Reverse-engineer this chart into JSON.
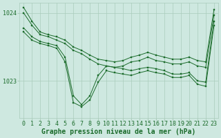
{
  "bg_color": "#cee8e0",
  "plot_bg_color": "#cee8e0",
  "grid_color": "#aaccbb",
  "line_color": "#1a6b2a",
  "marker_color": "#1a6b2a",
  "xlabel": "Graphe pression niveau de la mer (hPa)",
  "xlabel_fontsize": 7.0,
  "tick_fontsize": 6.0,
  "ytick_labels": [
    "1023",
    "1024"
  ],
  "ytick_values": [
    1023.0,
    1024.0
  ],
  "ylim": [
    1022.45,
    1024.15
  ],
  "xlim": [
    -0.5,
    23.5
  ],
  "xtick_values": [
    0,
    1,
    2,
    3,
    4,
    5,
    6,
    7,
    8,
    9,
    10,
    11,
    12,
    13,
    14,
    15,
    16,
    17,
    18,
    19,
    20,
    21,
    22,
    23
  ],
  "series": [
    [
      1024.08,
      1023.88,
      1023.72,
      1023.68,
      1023.65,
      1023.6,
      1023.5,
      1023.45,
      1023.38,
      1023.32,
      1023.3,
      1023.28,
      1023.3,
      1023.35,
      1023.38,
      1023.42,
      1023.38,
      1023.35,
      1023.32,
      1023.32,
      1023.35,
      1023.3,
      1023.28,
      1024.05
    ],
    [
      1024.0,
      1023.82,
      1023.68,
      1023.65,
      1023.6,
      1023.55,
      1023.45,
      1023.4,
      1023.32,
      1023.25,
      1023.22,
      1023.2,
      1023.22,
      1023.28,
      1023.3,
      1023.35,
      1023.3,
      1023.28,
      1023.25,
      1023.25,
      1023.28,
      1023.22,
      1023.2,
      1023.97
    ],
    [
      1023.78,
      1023.65,
      1023.58,
      1023.55,
      1023.52,
      1023.35,
      1022.78,
      1022.65,
      1022.78,
      1023.08,
      1023.22,
      1023.2,
      1023.18,
      1023.15,
      1023.18,
      1023.2,
      1023.18,
      1023.15,
      1023.1,
      1023.1,
      1023.12,
      1023.0,
      1022.98,
      1023.88
    ],
    [
      1023.72,
      1023.6,
      1023.55,
      1023.52,
      1023.48,
      1023.28,
      1022.68,
      1022.62,
      1022.72,
      1022.98,
      1023.15,
      1023.12,
      1023.1,
      1023.08,
      1023.12,
      1023.15,
      1023.12,
      1023.1,
      1023.05,
      1023.05,
      1023.08,
      1022.95,
      1022.92,
      1023.82
    ]
  ]
}
